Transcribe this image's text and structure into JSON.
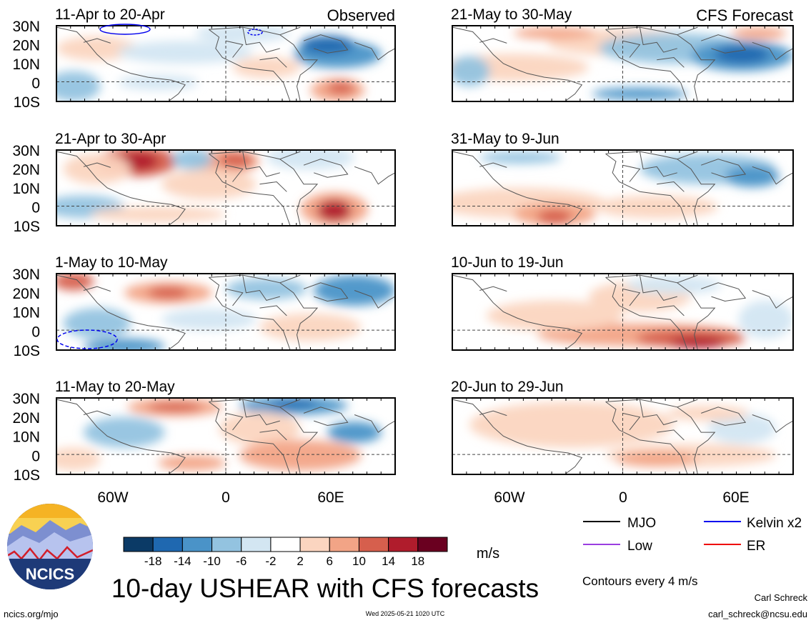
{
  "header": {
    "left_label": "Observed",
    "right_label": "CFS Forecast"
  },
  "latitude_ticks": [
    "30N",
    "20N",
    "10N",
    "0",
    "10S"
  ],
  "longitude_ticks": [
    "60W",
    "0",
    "60E"
  ],
  "panels_left": [
    {
      "period": "11-Apr to 20-Apr"
    },
    {
      "period": "21-Apr to 30-Apr"
    },
    {
      "period": "1-May to 10-May"
    },
    {
      "period": "11-May to 20-May"
    }
  ],
  "panels_right": [
    {
      "period": "21-May to 30-May"
    },
    {
      "period": "31-May to 9-Jun"
    },
    {
      "period": "10-Jun to 19-Jun"
    },
    {
      "period": "20-Jun to 29-Jun"
    }
  ],
  "colorbar": {
    "unit": "m/s",
    "tick_labels": [
      "-18",
      "-14",
      "-10",
      "-6",
      "-2",
      "2",
      "6",
      "10",
      "14",
      "18"
    ],
    "colors": [
      "#0b3a66",
      "#1f68b0",
      "#4a93c8",
      "#93c3e0",
      "#d3e6f2",
      "#ffffff",
      "#fbd5c0",
      "#f2a486",
      "#d65f4d",
      "#b01c2c",
      "#6a0020"
    ]
  },
  "legend": {
    "items": [
      {
        "label": "MJO",
        "color": "#000000"
      },
      {
        "label": "Kelvin x2",
        "color": "#0000ee"
      },
      {
        "label": "Low",
        "color": "#9a3ee0"
      },
      {
        "label": "ER",
        "color": "#ee0000"
      }
    ],
    "note": "Contours every 4 m/s"
  },
  "logo": {
    "text": "NCICS"
  },
  "title": "10-day USHEAR with CFS forecasts",
  "footer": {
    "url": "ncics.org/mjo",
    "timestamp": "Wed 2025-05-21 1020 UTC",
    "author": "Carl Schreck",
    "email": "carl_schreck@ncsu.edu"
  }
}
